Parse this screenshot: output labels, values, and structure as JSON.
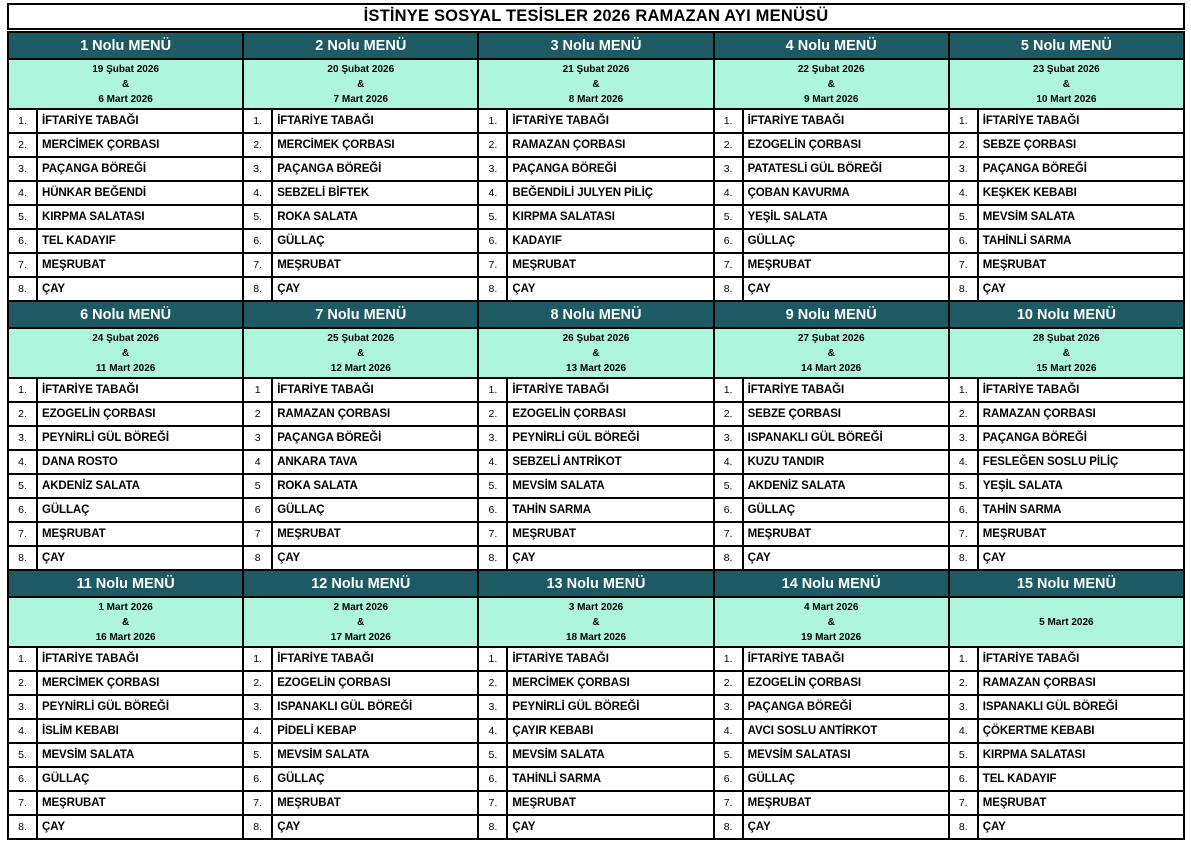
{
  "title": "İSTİNYE SOSYAL TESİSLER 2026 RAMAZAN AYI MENÜSÜ",
  "colors": {
    "header_bg": "#1e5a63",
    "header_text": "#ffffff",
    "date_bg": "#adf5dd",
    "border": "#000000",
    "text": "#000000"
  },
  "menus": [
    {
      "name": "1 Nolu MENÜ",
      "dates": [
        "19 Şubat 2026",
        "&",
        "6 Mart 2026"
      ],
      "nums": [
        "1.",
        "2.",
        "3.",
        "4.",
        "5.",
        "6.",
        "7.",
        "8."
      ],
      "items": [
        "İFTARİYE TABAĞI",
        "MERCİMEK ÇORBASI",
        "PAÇANGA BÖREĞİ",
        "HÜNKAR BEĞENDİ",
        "KIRPMA SALATASI",
        "TEL KADAYIF",
        "MEŞRUBAT",
        "ÇAY"
      ]
    },
    {
      "name": "2 Nolu MENÜ",
      "dates": [
        "20 Şubat 2026",
        "&",
        "7 Mart 2026"
      ],
      "nums": [
        "1.",
        "2.",
        "3.",
        "4.",
        "5.",
        "6.",
        "7.",
        "8."
      ],
      "items": [
        "İFTARİYE TABAĞI",
        "MERCİMEK ÇORBASI",
        "PAÇANGA BÖREĞİ",
        "SEBZELİ BİFTEK",
        "ROKA SALATA",
        "GÜLLAÇ",
        "MEŞRUBAT",
        "ÇAY"
      ]
    },
    {
      "name": "3 Nolu MENÜ",
      "dates": [
        "21 Şubat 2026",
        "&",
        "8 Mart 2026"
      ],
      "nums": [
        "1.",
        "2.",
        "3.",
        "4.",
        "5.",
        "6.",
        "7.",
        "8."
      ],
      "items": [
        "İFTARİYE TABAĞI",
        "RAMAZAN ÇORBASI",
        "PAÇANGA BÖREĞİ",
        "BEĞENDİLİ JULYEN PİLİÇ",
        "KIRPMA SALATASI",
        "KADAYIF",
        "MEŞRUBAT",
        "ÇAY"
      ]
    },
    {
      "name": "4 Nolu MENÜ",
      "dates": [
        "22 Şubat 2026",
        "&",
        "9 Mart 2026"
      ],
      "nums": [
        "1.",
        "2.",
        "3.",
        "4.",
        "5.",
        "6.",
        "7.",
        "8."
      ],
      "items": [
        "İFTARİYE TABAĞI",
        "EZOGELİN ÇORBASI",
        "PATATESLİ GÜL BÖREĞİ",
        "ÇOBAN KAVURMA",
        "YEŞİL SALATA",
        "GÜLLAÇ",
        "MEŞRUBAT",
        "ÇAY"
      ]
    },
    {
      "name": "5 Nolu MENÜ",
      "dates": [
        "23 Şubat 2026",
        "&",
        "10 Mart 2026"
      ],
      "nums": [
        "1.",
        "2.",
        "3.",
        "4.",
        "5.",
        "6.",
        "7.",
        "8."
      ],
      "items": [
        "İFTARİYE TABAĞI",
        "SEBZE ÇORBASI",
        "PAÇANGA BÖREĞİ",
        "KEŞKEK KEBABI",
        "MEVSİM SALATA",
        "TAHİNLİ SARMA",
        "MEŞRUBAT",
        "ÇAY"
      ]
    },
    {
      "name": "6 Nolu MENÜ",
      "dates": [
        "24 Şubat 2026",
        "&",
        "11 Mart 2026"
      ],
      "nums": [
        "1.",
        "2.",
        "3.",
        "4.",
        "5.",
        "6.",
        "7.",
        "8."
      ],
      "items": [
        "İFTARİYE TABAĞI",
        "EZOGELİN ÇORBASI",
        "PEYNİRLİ GÜL BÖREĞİ",
        "DANA ROSTO",
        "AKDENİZ SALATA",
        "GÜLLAÇ",
        "MEŞRUBAT",
        "ÇAY"
      ]
    },
    {
      "name": "7 Nolu MENÜ",
      "dates": [
        "25 Şubat 2026",
        "&",
        "12 Mart 2026"
      ],
      "nums": [
        "1",
        "2",
        "3",
        "4",
        "5",
        "6",
        "7",
        "8"
      ],
      "items": [
        "İFTARİYE TABAĞI",
        "RAMAZAN ÇORBASI",
        "PAÇANGA BÖREĞİ",
        "ANKARA TAVA",
        "ROKA SALATA",
        "GÜLLAÇ",
        "MEŞRUBAT",
        "ÇAY"
      ]
    },
    {
      "name": "8 Nolu MENÜ",
      "dates": [
        "26 Şubat 2026",
        "&",
        "13 Mart 2026"
      ],
      "nums": [
        "1.",
        "2.",
        "3.",
        "4.",
        "5.",
        "6.",
        "7.",
        "8."
      ],
      "items": [
        "İFTARİYE TABAĞI",
        "EZOGELİN ÇORBASI",
        "PEYNİRLİ GÜL BÖREĞİ",
        "SEBZELİ ANTRİKOT",
        "MEVSİM SALATA",
        "TAHİN SARMA",
        "MEŞRUBAT",
        "ÇAY"
      ]
    },
    {
      "name": "9 Nolu MENÜ",
      "dates": [
        "27 Şubat 2026",
        "&",
        "14 Mart 2026"
      ],
      "nums": [
        "1.",
        "2.",
        "3.",
        "4.",
        "5.",
        "6.",
        "7.",
        "8."
      ],
      "items": [
        "İFTARİYE TABAĞI",
        "SEBZE ÇORBASI",
        "ISPANAKLI GÜL BÖREĞİ",
        "KUZU TANDIR",
        "AKDENİZ SALATA",
        "GÜLLAÇ",
        "MEŞRUBAT",
        "ÇAY"
      ]
    },
    {
      "name": "10 Nolu MENÜ",
      "dates": [
        "28 Şubat 2026",
        "&",
        "15 Mart 2026"
      ],
      "nums": [
        "1.",
        "2.",
        "3.",
        "4.",
        "5.",
        "6.",
        "7.",
        "8."
      ],
      "items": [
        "İFTARİYE TABAĞI",
        "RAMAZAN ÇORBASI",
        "PAÇANGA BÖREĞİ",
        "FESLEĞEN SOSLU PİLİÇ",
        "YEŞİL SALATA",
        "TAHİN SARMA",
        "MEŞRUBAT",
        "ÇAY"
      ]
    },
    {
      "name": "11 Nolu MENÜ",
      "dates": [
        "1 Mart 2026",
        "&",
        "16 Mart 2026"
      ],
      "nums": [
        "1.",
        "2.",
        "3.",
        "4.",
        "5.",
        "6.",
        "7.",
        "8."
      ],
      "items": [
        "İFTARİYE TABAĞI",
        "MERCİMEK ÇORBASI",
        "PEYNİRLİ GÜL BÖREĞİ",
        "İSLİM KEBABI",
        "MEVSİM SALATA",
        "GÜLLAÇ",
        "MEŞRUBAT",
        "ÇAY"
      ]
    },
    {
      "name": "12 Nolu MENÜ",
      "dates": [
        "2 Mart 2026",
        "&",
        "17 Mart 2026"
      ],
      "nums": [
        "1.",
        "2.",
        "3.",
        "4.",
        "5.",
        "6.",
        "7.",
        "8."
      ],
      "items": [
        "İFTARİYE TABAĞI",
        "EZOGELİN ÇORBASI",
        "ISPANAKLI GÜL BÖREĞİ",
        "PİDELİ KEBAP",
        "MEVSİM SALATA",
        "GÜLLAÇ",
        "MEŞRUBAT",
        "ÇAY"
      ]
    },
    {
      "name": "13 Nolu MENÜ",
      "dates": [
        "3 Mart 2026",
        "&",
        "18 Mart 2026"
      ],
      "nums": [
        "1.",
        "2.",
        "3.",
        "4.",
        "5.",
        "6.",
        "7.",
        "8."
      ],
      "items": [
        "İFTARİYE TABAĞI",
        "MERCİMEK ÇORBASI",
        "PEYNİRLİ GÜL BÖREĞİ",
        "ÇAYIR KEBABI",
        "MEVSİM SALATA",
        "TAHİNLİ SARMA",
        "MEŞRUBAT",
        "ÇAY"
      ]
    },
    {
      "name": "14 Nolu MENÜ",
      "dates": [
        "4 Mart 2026",
        "&",
        "19 Mart 2026"
      ],
      "nums": [
        "1.",
        "2.",
        "3.",
        "4.",
        "5.",
        "6.",
        "7.",
        "8."
      ],
      "items": [
        "İFTARİYE TABAĞI",
        "EZOGELİN ÇORBASI",
        "PAÇANGA BÖREĞİ",
        "AVCI SOSLU ANTİRKOT",
        "MEVSİM SALATASI",
        "GÜLLAÇ",
        "MEŞRUBAT",
        "ÇAY"
      ]
    },
    {
      "name": "15 Nolu MENÜ",
      "dates": [
        "5 Mart 2026"
      ],
      "nums": [
        "1.",
        "2.",
        "3.",
        "4.",
        "5.",
        "6.",
        "7.",
        "8."
      ],
      "items": [
        "İFTARİYE TABAĞI",
        "RAMAZAN ÇORBASI",
        "ISPANAKLI GÜL BÖREĞİ",
        "ÇÖKERTME KEBABI",
        "KIRPMA SALATASI",
        "TEL KADAYIF",
        "MEŞRUBAT",
        "ÇAY"
      ]
    }
  ]
}
